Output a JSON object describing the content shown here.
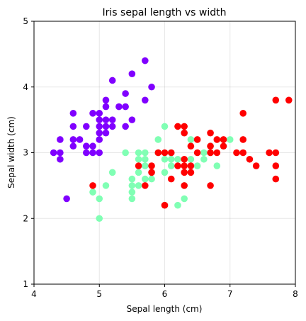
{
  "chart_data": {
    "type": "scatter",
    "title": "Iris sepal length vs width",
    "xlabel": "Sepal length (cm)",
    "ylabel": "Sepal width (cm)",
    "xlim": [
      4,
      8
    ],
    "ylim": [
      1,
      5
    ],
    "xticks": [
      4,
      5,
      6,
      7,
      8
    ],
    "yticks": [
      1,
      2,
      3,
      4,
      5
    ],
    "grid": true,
    "series": [
      {
        "color": "#8000ff",
        "points": [
          [
            4.3,
            3.0
          ],
          [
            4.4,
            3.0
          ],
          [
            4.4,
            2.9
          ],
          [
            4.4,
            3.2
          ],
          [
            4.5,
            2.3
          ],
          [
            4.6,
            3.6
          ],
          [
            4.6,
            3.4
          ],
          [
            4.6,
            3.2
          ],
          [
            4.6,
            3.1
          ],
          [
            4.7,
            3.2
          ],
          [
            4.8,
            3.4
          ],
          [
            4.8,
            3.1
          ],
          [
            4.8,
            3.0
          ],
          [
            4.9,
            3.6
          ],
          [
            4.9,
            3.1
          ],
          [
            4.9,
            3.0
          ],
          [
            5.0,
            3.6
          ],
          [
            5.0,
            3.5
          ],
          [
            5.0,
            3.4
          ],
          [
            5.0,
            3.3
          ],
          [
            5.0,
            3.2
          ],
          [
            5.0,
            3.0
          ],
          [
            5.1,
            3.8
          ],
          [
            5.1,
            3.7
          ],
          [
            5.1,
            3.5
          ],
          [
            5.1,
            3.4
          ],
          [
            5.1,
            3.3
          ],
          [
            5.2,
            4.1
          ],
          [
            5.2,
            3.5
          ],
          [
            5.2,
            3.4
          ],
          [
            5.3,
            3.7
          ],
          [
            5.4,
            3.9
          ],
          [
            5.4,
            3.7
          ],
          [
            5.4,
            3.4
          ],
          [
            5.5,
            4.2
          ],
          [
            5.5,
            3.5
          ],
          [
            5.7,
            4.4
          ],
          [
            5.7,
            3.8
          ],
          [
            5.8,
            4.0
          ]
        ]
      },
      {
        "color": "#80ffb4",
        "points": [
          [
            4.9,
            2.4
          ],
          [
            5.0,
            2.3
          ],
          [
            5.0,
            2.0
          ],
          [
            5.1,
            2.5
          ],
          [
            5.2,
            2.7
          ],
          [
            5.4,
            3.0
          ],
          [
            5.5,
            2.6
          ],
          [
            5.5,
            2.5
          ],
          [
            5.5,
            2.4
          ],
          [
            5.5,
            2.3
          ],
          [
            5.6,
            3.0
          ],
          [
            5.6,
            2.9
          ],
          [
            5.6,
            2.7
          ],
          [
            5.6,
            2.5
          ],
          [
            5.7,
            3.0
          ],
          [
            5.7,
            2.9
          ],
          [
            5.7,
            2.8
          ],
          [
            5.7,
            2.6
          ],
          [
            5.8,
            2.7
          ],
          [
            5.8,
            2.6
          ],
          [
            5.9,
            3.2
          ],
          [
            5.9,
            3.0
          ],
          [
            6.0,
            3.4
          ],
          [
            6.0,
            2.9
          ],
          [
            6.0,
            2.7
          ],
          [
            6.0,
            2.2
          ],
          [
            6.1,
            3.0
          ],
          [
            6.1,
            2.9
          ],
          [
            6.1,
            2.8
          ],
          [
            6.2,
            2.9
          ],
          [
            6.2,
            2.2
          ],
          [
            6.3,
            3.3
          ],
          [
            6.3,
            2.5
          ],
          [
            6.3,
            2.3
          ],
          [
            6.4,
            3.2
          ],
          [
            6.4,
            2.9
          ],
          [
            6.5,
            2.8
          ],
          [
            6.6,
            3.0
          ],
          [
            6.6,
            2.9
          ],
          [
            6.7,
            3.1
          ],
          [
            6.7,
            3.0
          ],
          [
            6.8,
            2.8
          ],
          [
            6.9,
            3.1
          ],
          [
            7.0,
            3.2
          ]
        ]
      },
      {
        "color": "#ff0000",
        "points": [
          [
            4.9,
            2.5
          ],
          [
            5.6,
            2.8
          ],
          [
            5.7,
            2.5
          ],
          [
            5.8,
            2.8
          ],
          [
            5.8,
            2.7
          ],
          [
            5.9,
            3.0
          ],
          [
            6.0,
            3.0
          ],
          [
            6.0,
            2.2
          ],
          [
            6.1,
            3.0
          ],
          [
            6.1,
            2.6
          ],
          [
            6.2,
            3.4
          ],
          [
            6.2,
            2.8
          ],
          [
            6.3,
            3.4
          ],
          [
            6.3,
            3.3
          ],
          [
            6.3,
            2.9
          ],
          [
            6.3,
            2.8
          ],
          [
            6.3,
            2.7
          ],
          [
            6.3,
            2.5
          ],
          [
            6.4,
            3.1
          ],
          [
            6.4,
            2.8
          ],
          [
            6.4,
            2.7
          ],
          [
            6.5,
            3.2
          ],
          [
            6.5,
            3.0
          ],
          [
            6.7,
            3.3
          ],
          [
            6.7,
            3.1
          ],
          [
            6.7,
            3.0
          ],
          [
            6.7,
            2.5
          ],
          [
            6.8,
            3.2
          ],
          [
            6.8,
            3.0
          ],
          [
            6.9,
            3.2
          ],
          [
            6.9,
            3.1
          ],
          [
            7.1,
            3.0
          ],
          [
            7.2,
            3.6
          ],
          [
            7.2,
            3.2
          ],
          [
            7.2,
            3.0
          ],
          [
            7.3,
            2.9
          ],
          [
            7.4,
            2.8
          ],
          [
            7.6,
            3.0
          ],
          [
            7.7,
            3.8
          ],
          [
            7.7,
            3.0
          ],
          [
            7.7,
            2.8
          ],
          [
            7.7,
            2.6
          ],
          [
            7.9,
            3.8
          ]
        ]
      }
    ]
  }
}
